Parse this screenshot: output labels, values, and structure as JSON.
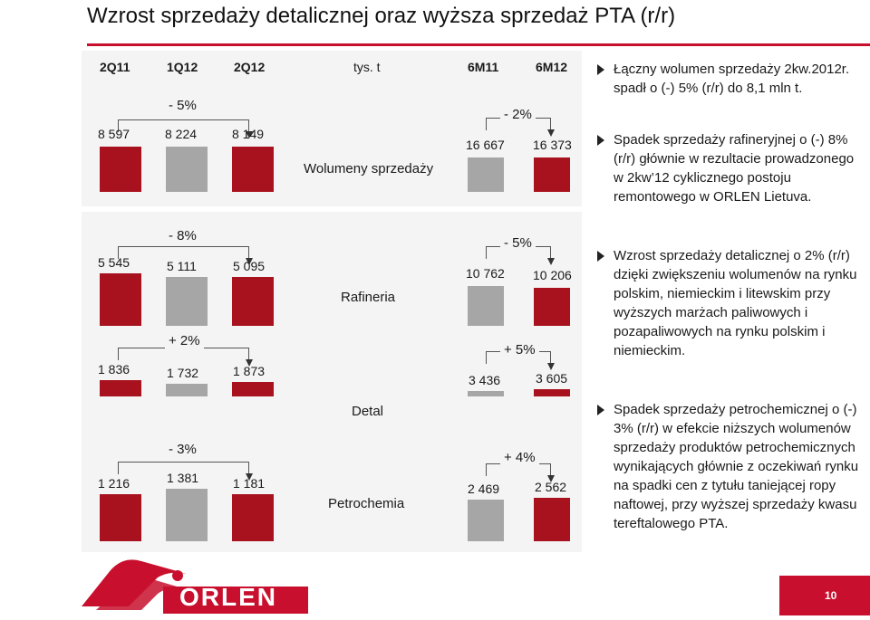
{
  "title": "Wzrost sprzedaży detalicznej oraz wyższa sprzedaż PTA (r/r)",
  "columns": [
    "2Q11",
    "1Q12",
    "2Q12",
    "6M11",
    "6M12"
  ],
  "unit": "tys. t",
  "segments": {
    "total": {
      "label": "Wolumeny sprzedaży",
      "quarter_values": [
        "8 597",
        "8 224",
        "8 149"
      ],
      "quarter_change": "- 5%",
      "halfyear_values": [
        "16 667",
        "16 373"
      ],
      "halfyear_change": "- 2%"
    },
    "refining": {
      "label": "Rafineria",
      "quarter_values": [
        "5 545",
        "5 111",
        "5 095"
      ],
      "quarter_change": "- 8%",
      "halfyear_values": [
        "10 762",
        "10 206"
      ],
      "halfyear_change": "- 5%"
    },
    "retail": {
      "label": "Detal",
      "quarter_values": [
        "1 836",
        "1 732",
        "1 873"
      ],
      "quarter_change": "+ 2%",
      "halfyear_values": [
        "3 436",
        "3 605"
      ],
      "halfyear_change": "+ 5%"
    },
    "petrochem": {
      "label": "Petrochemia",
      "quarter_values": [
        "1 216",
        "1 381",
        "1 181"
      ],
      "quarter_change": "- 3%",
      "halfyear_values": [
        "2 469",
        "2 562"
      ],
      "halfyear_change": "+ 4%"
    }
  },
  "bullets": [
    "Łączny wolumen sprzedaży 2kw.2012r. spadł o (-) 5% (r/r) do 8,1 mln t.",
    "Spadek sprzedaży rafineryjnej o (-) 8% (r/r) głównie w rezultacie prowadzonego w 2kw’12 cyklicznego postoju remontowego w ORLEN Lietuva.",
    "Wzrost sprzedaży detalicznej o 2% (r/r) dzięki zwiększeniu wolumenów na rynku polskim, niemieckim i litewskim przy wyższych marżach paliwowych i pozapaliwowych na rynku polskim i niemieckim.",
    "Spadek sprzedaży petrochemicznej o (-) 3% (r/r) w efekcie niższych wolumenów sprzedaży produktów petrochemicznych wynikających głównie z oczekiwań rynku na spadki cen z tytułu taniejącej ropy naftowej, przy wyższej sprzedaży kwasu tereftalowego PTA."
  ],
  "logo_text": "ORLEN",
  "page_number": "10",
  "colors": {
    "accent": "#c8102e",
    "bar_red": "#a8121e",
    "bar_gray": "#a6a6a6",
    "panel_bg": "#f4f4f4"
  }
}
